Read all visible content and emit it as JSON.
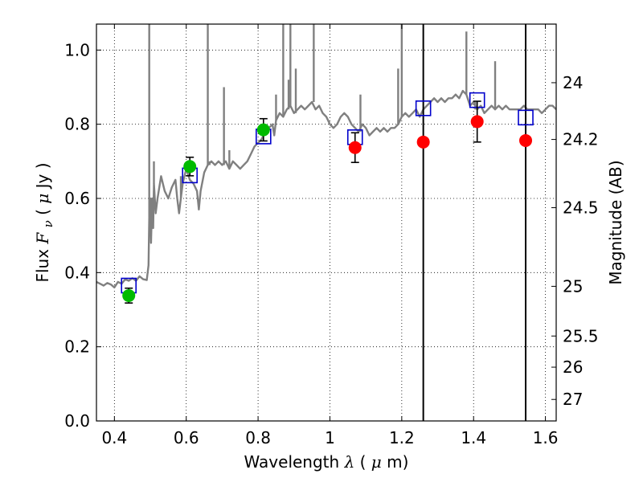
{
  "chart_data": {
    "type": "scatter",
    "xlabel": "Wavelength",
    "xlabel_math": "λ",
    "xlabel_unit_pre": " (",
    "xlabel_unit_mu": "μ",
    "xlabel_unit_post": "m)",
    "ylabel": "Flux",
    "ylabel_math": "F",
    "ylabel_math_sub": "ν",
    "ylabel_unit_pre": " ( ",
    "ylabel_unit_mu": "μ",
    "ylabel_unit_post": "Jy )",
    "y2label": "Magnitude (AB)",
    "xlim": [
      0.35,
      1.63
    ],
    "ylim": [
      0.0,
      1.07
    ],
    "grid": true,
    "x_ticks": [
      0.4,
      0.6,
      0.8,
      1.0,
      1.2,
      1.4,
      1.6
    ],
    "x_tick_labels": [
      "0.4",
      "0.6",
      "0.8",
      "1",
      "1.2",
      "1.4",
      "1.6"
    ],
    "y_ticks": [
      0.0,
      0.2,
      0.4,
      0.6,
      0.8,
      1.0
    ],
    "y_tick_labels": [
      "0.0",
      "0.2",
      "0.4",
      "0.6",
      "0.8",
      "1.0"
    ],
    "y2_ticks": [
      {
        "label": "24",
        "flux": 0.912
      },
      {
        "label": "24.2",
        "flux": 0.759
      },
      {
        "label": "24.5",
        "flux": 0.575
      },
      {
        "label": "25",
        "flux": 0.363
      },
      {
        "label": "25.5",
        "flux": 0.229
      },
      {
        "label": "26",
        "flux": 0.145
      },
      {
        "label": "27",
        "flux": 0.058
      }
    ],
    "vertical_lines": [
      1.26,
      1.545
    ],
    "series": [
      {
        "kind": "line",
        "color": "#808080",
        "points": [
          [
            0.35,
            0.375
          ],
          [
            0.36,
            0.37
          ],
          [
            0.37,
            0.365
          ],
          [
            0.38,
            0.372
          ],
          [
            0.39,
            0.368
          ],
          [
            0.4,
            0.36
          ],
          [
            0.41,
            0.375
          ],
          [
            0.42,
            0.37
          ],
          [
            0.43,
            0.382
          ],
          [
            0.44,
            0.378
          ],
          [
            0.45,
            0.385
          ],
          [
            0.46,
            0.378
          ],
          [
            0.47,
            0.39
          ],
          [
            0.48,
            0.382
          ],
          [
            0.49,
            0.38
          ],
          [
            0.495,
            0.42
          ],
          [
            0.497,
            0.55
          ],
          [
            0.5,
            0.6
          ],
          [
            0.502,
            0.48
          ],
          [
            0.505,
            0.6
          ],
          [
            0.508,
            0.52
          ],
          [
            0.51,
            0.64
          ],
          [
            0.515,
            0.56
          ],
          [
            0.52,
            0.6
          ],
          [
            0.53,
            0.66
          ],
          [
            0.54,
            0.62
          ],
          [
            0.55,
            0.6
          ],
          [
            0.56,
            0.63
          ],
          [
            0.57,
            0.65
          ],
          [
            0.575,
            0.6
          ],
          [
            0.58,
            0.56
          ],
          [
            0.585,
            0.6
          ],
          [
            0.59,
            0.64
          ],
          [
            0.6,
            0.68
          ],
          [
            0.61,
            0.65
          ],
          [
            0.62,
            0.64
          ],
          [
            0.63,
            0.62
          ],
          [
            0.635,
            0.57
          ],
          [
            0.64,
            0.62
          ],
          [
            0.65,
            0.67
          ],
          [
            0.66,
            0.69
          ],
          [
            0.67,
            0.7
          ],
          [
            0.68,
            0.69
          ],
          [
            0.69,
            0.7
          ],
          [
            0.7,
            0.69
          ],
          [
            0.71,
            0.7
          ],
          [
            0.72,
            0.68
          ],
          [
            0.73,
            0.7
          ],
          [
            0.74,
            0.69
          ],
          [
            0.75,
            0.68
          ],
          [
            0.76,
            0.69
          ],
          [
            0.77,
            0.7
          ],
          [
            0.78,
            0.72
          ],
          [
            0.79,
            0.74
          ],
          [
            0.8,
            0.75
          ],
          [
            0.81,
            0.76
          ],
          [
            0.82,
            0.78
          ],
          [
            0.83,
            0.79
          ],
          [
            0.84,
            0.8
          ],
          [
            0.845,
            0.77
          ],
          [
            0.85,
            0.81
          ],
          [
            0.86,
            0.83
          ],
          [
            0.87,
            0.82
          ],
          [
            0.88,
            0.84
          ],
          [
            0.89,
            0.85
          ],
          [
            0.9,
            0.83
          ],
          [
            0.91,
            0.84
          ],
          [
            0.92,
            0.85
          ],
          [
            0.93,
            0.84
          ],
          [
            0.94,
            0.85
          ],
          [
            0.95,
            0.86
          ],
          [
            0.96,
            0.84
          ],
          [
            0.97,
            0.85
          ],
          [
            0.98,
            0.83
          ],
          [
            0.99,
            0.82
          ],
          [
            1.0,
            0.8
          ],
          [
            1.01,
            0.79
          ],
          [
            1.02,
            0.8
          ],
          [
            1.03,
            0.82
          ],
          [
            1.04,
            0.83
          ],
          [
            1.05,
            0.82
          ],
          [
            1.06,
            0.8
          ],
          [
            1.07,
            0.79
          ],
          [
            1.08,
            0.78
          ],
          [
            1.09,
            0.8
          ],
          [
            1.1,
            0.79
          ],
          [
            1.11,
            0.77
          ],
          [
            1.12,
            0.78
          ],
          [
            1.13,
            0.79
          ],
          [
            1.14,
            0.78
          ],
          [
            1.15,
            0.79
          ],
          [
            1.16,
            0.78
          ],
          [
            1.17,
            0.79
          ],
          [
            1.18,
            0.79
          ],
          [
            1.19,
            0.8
          ],
          [
            1.2,
            0.82
          ],
          [
            1.21,
            0.83
          ],
          [
            1.22,
            0.82
          ],
          [
            1.23,
            0.83
          ],
          [
            1.24,
            0.84
          ],
          [
            1.25,
            0.82
          ],
          [
            1.26,
            0.84
          ],
          [
            1.27,
            0.85
          ],
          [
            1.28,
            0.86
          ],
          [
            1.29,
            0.87
          ],
          [
            1.3,
            0.86
          ],
          [
            1.31,
            0.87
          ],
          [
            1.32,
            0.86
          ],
          [
            1.33,
            0.87
          ],
          [
            1.34,
            0.87
          ],
          [
            1.35,
            0.88
          ],
          [
            1.36,
            0.87
          ],
          [
            1.37,
            0.89
          ],
          [
            1.38,
            0.88
          ],
          [
            1.39,
            0.85
          ],
          [
            1.4,
            0.86
          ],
          [
            1.41,
            0.84
          ],
          [
            1.42,
            0.85
          ],
          [
            1.43,
            0.83
          ],
          [
            1.44,
            0.84
          ],
          [
            1.45,
            0.85
          ],
          [
            1.46,
            0.84
          ],
          [
            1.47,
            0.85
          ],
          [
            1.48,
            0.84
          ],
          [
            1.49,
            0.85
          ],
          [
            1.5,
            0.84
          ],
          [
            1.51,
            0.84
          ],
          [
            1.52,
            0.84
          ],
          [
            1.53,
            0.84
          ],
          [
            1.54,
            0.85
          ],
          [
            1.55,
            0.84
          ],
          [
            1.56,
            0.84
          ],
          [
            1.57,
            0.84
          ],
          [
            1.58,
            0.84
          ],
          [
            1.59,
            0.83
          ],
          [
            1.6,
            0.84
          ],
          [
            1.61,
            0.85
          ],
          [
            1.62,
            0.85
          ],
          [
            1.63,
            0.84
          ]
        ],
        "spikes": [
          [
            0.497,
            1.07
          ],
          [
            0.5,
            0.55
          ],
          [
            0.51,
            0.7
          ],
          [
            0.585,
            0.66
          ],
          [
            0.66,
            1.07
          ],
          [
            0.665,
            0.7
          ],
          [
            0.705,
            0.9
          ],
          [
            0.72,
            0.73
          ],
          [
            0.85,
            0.88
          ],
          [
            0.87,
            1.07
          ],
          [
            0.885,
            0.92
          ],
          [
            0.89,
            1.07
          ],
          [
            0.905,
            0.95
          ],
          [
            0.955,
            1.07
          ],
          [
            1.085,
            0.88
          ],
          [
            1.19,
            0.95
          ],
          [
            1.2,
            1.07
          ],
          [
            1.38,
            1.05
          ],
          [
            1.405,
            0.85
          ],
          [
            1.405,
            0.86
          ],
          [
            1.46,
            0.97
          ]
        ]
      },
      {
        "kind": "squares",
        "color": "#0000cc",
        "points": [
          [
            0.44,
            0.365
          ],
          [
            0.61,
            0.662
          ],
          [
            0.815,
            0.767
          ],
          [
            1.07,
            0.765
          ],
          [
            1.26,
            0.843
          ],
          [
            1.41,
            0.865
          ],
          [
            1.545,
            0.818
          ]
        ]
      },
      {
        "kind": "circles",
        "color": "#00bb00",
        "points": [
          [
            0.44,
            0.338,
            0.02
          ],
          [
            0.61,
            0.686,
            0.025
          ],
          [
            0.815,
            0.785,
            0.03
          ]
        ]
      },
      {
        "kind": "circles",
        "color": "#ff0000",
        "points": [
          [
            1.07,
            0.737,
            0.04
          ],
          [
            1.26,
            0.752,
            0
          ],
          [
            1.41,
            0.807,
            0.055
          ],
          [
            1.545,
            0.756,
            0
          ]
        ]
      }
    ]
  }
}
